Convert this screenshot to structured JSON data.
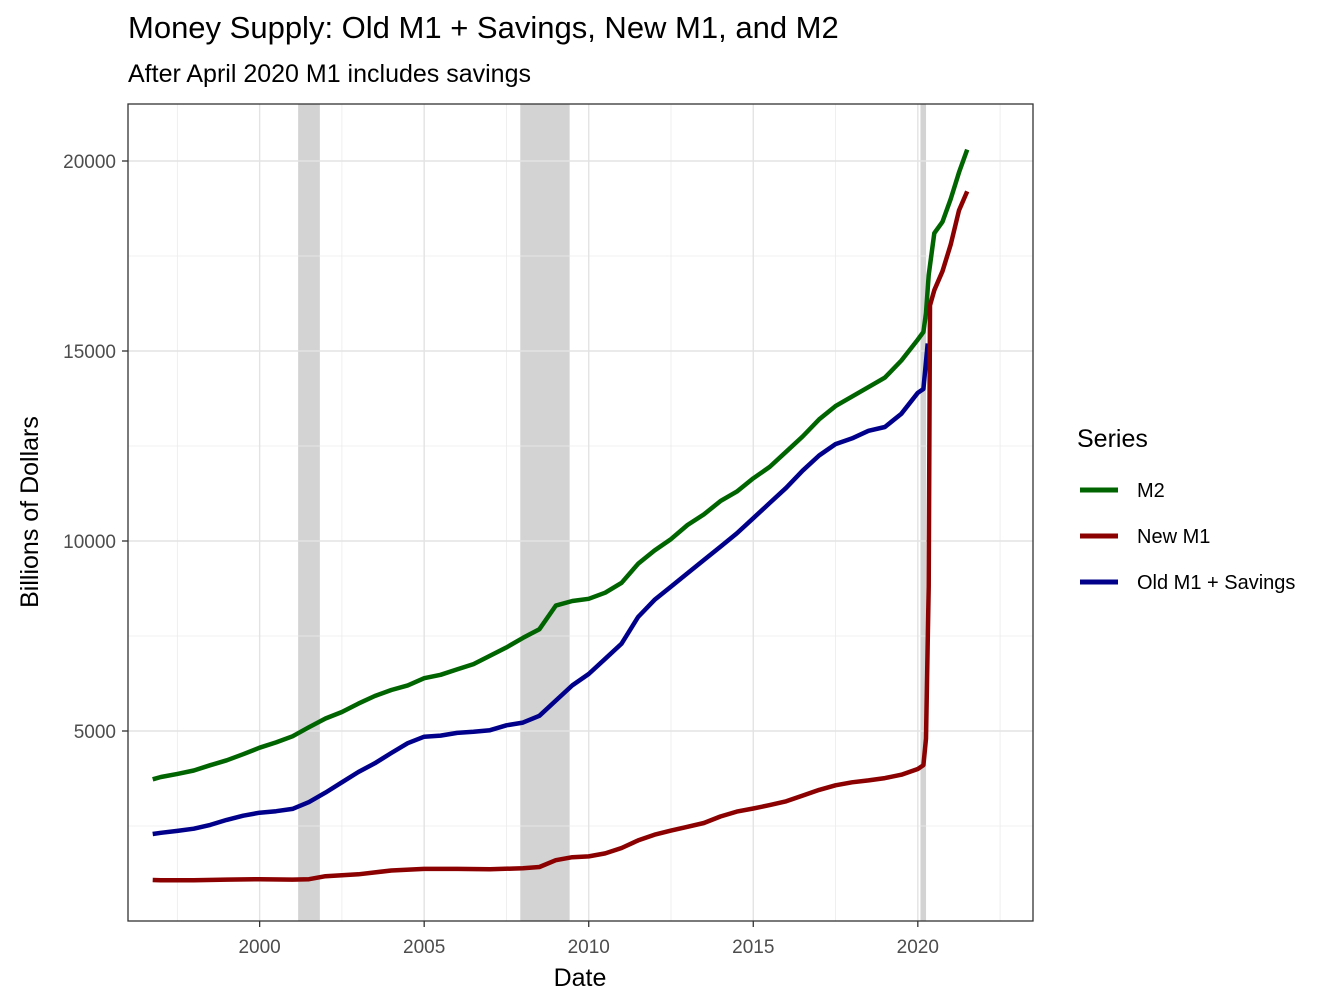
{
  "chart_data": {
    "type": "line",
    "title": "Money Supply: Old M1 + Savings, New M1, and M2",
    "subtitle": "After April 2020 M1 includes savings",
    "xlabel": "Date",
    "ylabel": "Billions of Dollars",
    "xlim": [
      1996.0,
      2023.5
    ],
    "ylim": [
      0,
      21500
    ],
    "x_ticks": [
      2000,
      2005,
      2010,
      2015,
      2020
    ],
    "y_ticks": [
      5000,
      10000,
      15000,
      20000
    ],
    "grid": true,
    "legend": {
      "title": "Series",
      "position": "right"
    },
    "recessions": [
      {
        "start": 2001.17,
        "end": 2001.83
      },
      {
        "start": 2007.92,
        "end": 2009.42
      },
      {
        "start": 2020.08,
        "end": 2020.25
      }
    ],
    "series": [
      {
        "name": "M2",
        "color": "#006400",
        "points": [
          [
            1996.75,
            3730
          ],
          [
            1997.0,
            3790
          ],
          [
            1997.5,
            3870
          ],
          [
            1998.0,
            3960
          ],
          [
            1998.5,
            4100
          ],
          [
            1999.0,
            4230
          ],
          [
            1999.5,
            4390
          ],
          [
            2000.0,
            4560
          ],
          [
            2000.5,
            4700
          ],
          [
            2001.0,
            4860
          ],
          [
            2001.5,
            5100
          ],
          [
            2002.0,
            5330
          ],
          [
            2002.5,
            5500
          ],
          [
            2003.0,
            5720
          ],
          [
            2003.5,
            5920
          ],
          [
            2004.0,
            6080
          ],
          [
            2004.5,
            6200
          ],
          [
            2005.0,
            6390
          ],
          [
            2005.5,
            6480
          ],
          [
            2006.0,
            6620
          ],
          [
            2006.5,
            6760
          ],
          [
            2007.0,
            6980
          ],
          [
            2007.5,
            7200
          ],
          [
            2008.0,
            7450
          ],
          [
            2008.5,
            7680
          ],
          [
            2009.0,
            8300
          ],
          [
            2009.5,
            8420
          ],
          [
            2010.0,
            8480
          ],
          [
            2010.5,
            8640
          ],
          [
            2011.0,
            8900
          ],
          [
            2011.5,
            9400
          ],
          [
            2012.0,
            9750
          ],
          [
            2012.5,
            10050
          ],
          [
            2013.0,
            10420
          ],
          [
            2013.5,
            10700
          ],
          [
            2014.0,
            11050
          ],
          [
            2014.5,
            11300
          ],
          [
            2015.0,
            11650
          ],
          [
            2015.5,
            11950
          ],
          [
            2016.0,
            12350
          ],
          [
            2016.5,
            12750
          ],
          [
            2017.0,
            13200
          ],
          [
            2017.5,
            13550
          ],
          [
            2018.0,
            13800
          ],
          [
            2018.5,
            14050
          ],
          [
            2019.0,
            14300
          ],
          [
            2019.5,
            14750
          ],
          [
            2020.0,
            15300
          ],
          [
            2020.17,
            15500
          ],
          [
            2020.25,
            16000
          ],
          [
            2020.33,
            17000
          ],
          [
            2020.5,
            18100
          ],
          [
            2020.75,
            18400
          ],
          [
            2021.0,
            19000
          ],
          [
            2021.25,
            19700
          ],
          [
            2021.5,
            20300
          ]
        ]
      },
      {
        "name": "New M1",
        "color": "#8B0000",
        "points": [
          [
            1996.75,
            1080
          ],
          [
            1997.0,
            1070
          ],
          [
            1998.0,
            1070
          ],
          [
            1999.0,
            1090
          ],
          [
            2000.0,
            1100
          ],
          [
            2001.0,
            1090
          ],
          [
            2001.5,
            1100
          ],
          [
            2002.0,
            1180
          ],
          [
            2003.0,
            1230
          ],
          [
            2004.0,
            1330
          ],
          [
            2005.0,
            1370
          ],
          [
            2006.0,
            1370
          ],
          [
            2007.0,
            1360
          ],
          [
            2008.0,
            1390
          ],
          [
            2008.5,
            1420
          ],
          [
            2009.0,
            1600
          ],
          [
            2009.5,
            1680
          ],
          [
            2010.0,
            1700
          ],
          [
            2010.5,
            1780
          ],
          [
            2011.0,
            1920
          ],
          [
            2011.5,
            2120
          ],
          [
            2012.0,
            2270
          ],
          [
            2012.5,
            2380
          ],
          [
            2013.0,
            2480
          ],
          [
            2013.5,
            2580
          ],
          [
            2014.0,
            2750
          ],
          [
            2014.5,
            2880
          ],
          [
            2015.0,
            2960
          ],
          [
            2015.5,
            3050
          ],
          [
            2016.0,
            3150
          ],
          [
            2016.5,
            3300
          ],
          [
            2017.0,
            3450
          ],
          [
            2017.5,
            3570
          ],
          [
            2018.0,
            3650
          ],
          [
            2018.5,
            3700
          ],
          [
            2019.0,
            3760
          ],
          [
            2019.5,
            3850
          ],
          [
            2020.0,
            4000
          ],
          [
            2020.17,
            4100
          ],
          [
            2020.25,
            4800
          ],
          [
            2020.33,
            8800
          ],
          [
            2020.37,
            16200
          ],
          [
            2020.5,
            16600
          ],
          [
            2020.75,
            17100
          ],
          [
            2021.0,
            17800
          ],
          [
            2021.25,
            18700
          ],
          [
            2021.5,
            19200
          ]
        ]
      },
      {
        "name": "Old M1 + Savings",
        "color": "#00008B",
        "points": [
          [
            1996.75,
            2290
          ],
          [
            1997.0,
            2320
          ],
          [
            1997.5,
            2370
          ],
          [
            1998.0,
            2430
          ],
          [
            1998.5,
            2530
          ],
          [
            1999.0,
            2660
          ],
          [
            1999.5,
            2770
          ],
          [
            2000.0,
            2850
          ],
          [
            2000.5,
            2890
          ],
          [
            2001.0,
            2950
          ],
          [
            2001.5,
            3130
          ],
          [
            2002.0,
            3380
          ],
          [
            2002.5,
            3650
          ],
          [
            2003.0,
            3920
          ],
          [
            2003.5,
            4150
          ],
          [
            2004.0,
            4420
          ],
          [
            2004.5,
            4680
          ],
          [
            2005.0,
            4850
          ],
          [
            2005.5,
            4880
          ],
          [
            2006.0,
            4950
          ],
          [
            2006.5,
            4980
          ],
          [
            2007.0,
            5020
          ],
          [
            2007.5,
            5150
          ],
          [
            2008.0,
            5220
          ],
          [
            2008.5,
            5400
          ],
          [
            2009.0,
            5800
          ],
          [
            2009.5,
            6200
          ],
          [
            2010.0,
            6500
          ],
          [
            2010.5,
            6900
          ],
          [
            2011.0,
            7300
          ],
          [
            2011.5,
            8000
          ],
          [
            2012.0,
            8450
          ],
          [
            2012.5,
            8800
          ],
          [
            2013.0,
            9150
          ],
          [
            2013.5,
            9500
          ],
          [
            2014.0,
            9850
          ],
          [
            2014.5,
            10200
          ],
          [
            2015.0,
            10600
          ],
          [
            2015.5,
            11000
          ],
          [
            2016.0,
            11400
          ],
          [
            2016.5,
            11850
          ],
          [
            2017.0,
            12250
          ],
          [
            2017.5,
            12550
          ],
          [
            2018.0,
            12700
          ],
          [
            2018.5,
            12900
          ],
          [
            2019.0,
            13000
          ],
          [
            2019.5,
            13350
          ],
          [
            2020.0,
            13900
          ],
          [
            2020.17,
            14000
          ],
          [
            2020.3,
            15200
          ]
        ]
      }
    ]
  }
}
